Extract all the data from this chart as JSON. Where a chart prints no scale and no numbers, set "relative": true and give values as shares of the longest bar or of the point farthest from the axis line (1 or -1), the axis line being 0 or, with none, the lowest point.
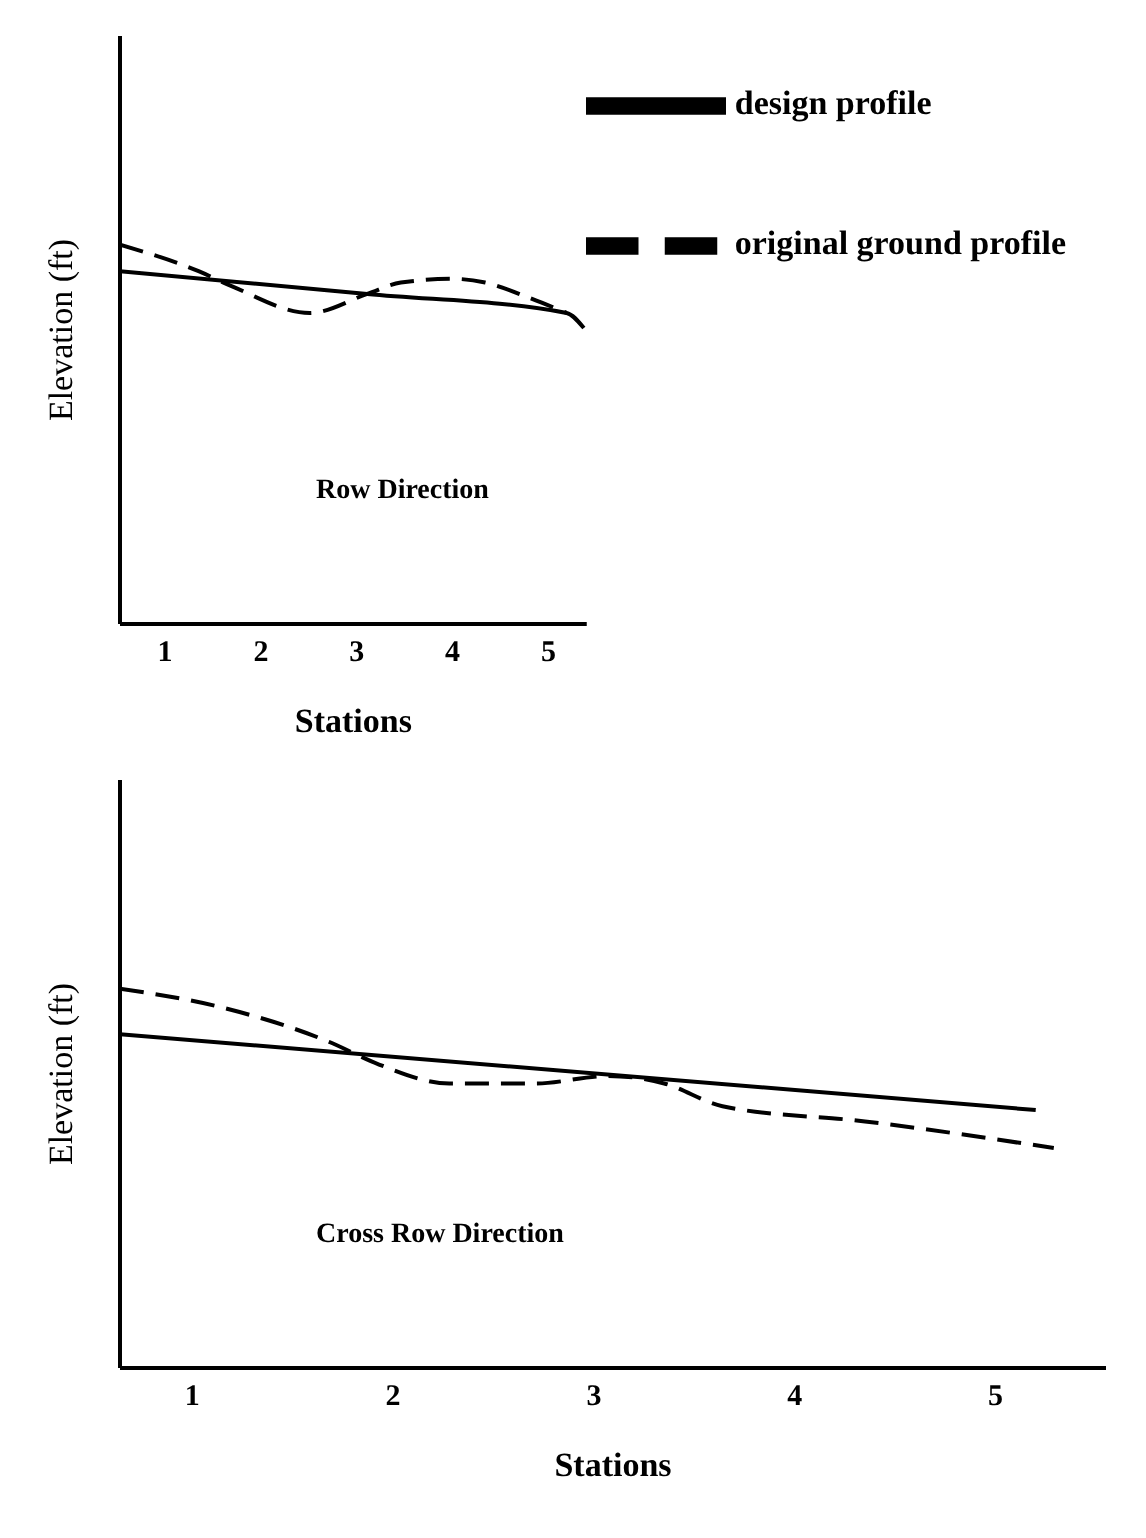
{
  "chart_data": [
    {
      "type": "line",
      "xlabel": "Stations",
      "ylabel": "Elevation (ft)",
      "relative": true,
      "xlim": [
        0.53,
        5.4
      ],
      "xticks": [
        1,
        2,
        3,
        4,
        5
      ],
      "legend": "top right",
      "annotations": [
        "Row Direction"
      ],
      "series": [
        {
          "name": "original ground profile",
          "color": "#000000",
          "line_style": "dashed",
          "x": [
            0.53,
            1.35,
            1.7,
            2.51,
            3.11,
            3.46,
            4.0,
            4.34,
            4.8,
            5.19
          ],
          "values": [
            1.0,
            0.93,
            0.89,
            0.82,
            0.87,
            0.9,
            0.91,
            0.9,
            0.86,
            0.82
          ]
        },
        {
          "name": "design profile",
          "color": "#000000",
          "line_style": "solid",
          "x": [
            0.53,
            3.11,
            5.19,
            5.37
          ],
          "values": [
            0.93,
            0.87,
            0.82,
            0.78
          ]
        }
      ]
    },
    {
      "type": "line",
      "xlabel": "Stations",
      "ylabel": "Elevation (ft)",
      "relative": true,
      "xlim": [
        0.64,
        5.55
      ],
      "xticks": [
        1,
        2,
        3,
        4,
        5
      ],
      "annotations": [
        "Cross Row Direction"
      ],
      "series": [
        {
          "color": "#000000",
          "line_style": "dashed",
          "x": [
            0.64,
            1.15,
            1.68,
            1.93,
            2.28,
            2.71,
            3.07,
            3.35,
            3.64,
            4.35,
            5.29
          ],
          "values": [
            1.0,
            0.95,
            0.86,
            0.8,
            0.75,
            0.75,
            0.77,
            0.75,
            0.69,
            0.65,
            0.58
          ]
        },
        {
          "color": "#000000",
          "line_style": "solid",
          "x": [
            0.64,
            5.2
          ],
          "values": [
            0.88,
            0.68
          ]
        }
      ]
    }
  ]
}
